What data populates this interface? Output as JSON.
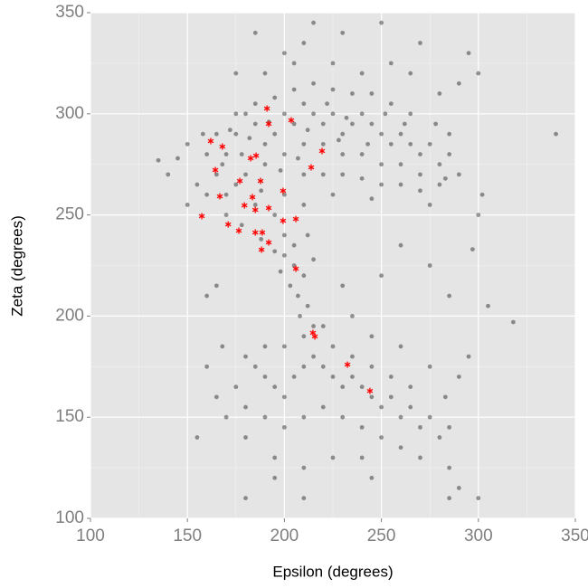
{
  "chart_data": {
    "type": "scatter",
    "x_label": "Epsilon (degrees)",
    "y_label": "Zeta (degrees)",
    "xlim": [
      100,
      350
    ],
    "ylim": [
      100,
      350
    ],
    "xticks": [
      100,
      150,
      200,
      250,
      300,
      350
    ],
    "yticks": [
      100,
      150,
      200,
      250,
      300,
      350
    ],
    "xminor": [
      125,
      175,
      225,
      275,
      325
    ],
    "yminor": [
      125,
      175,
      225,
      275,
      325
    ],
    "grid": true,
    "background": "#e5e5e5",
    "series": [
      {
        "color": "#000000",
        "marker": "dot",
        "opacity": 0.4,
        "x": [
          170,
          175,
          180,
          185,
          190,
          195,
          200,
          205,
          210,
          215,
          220,
          225,
          230,
          235,
          240,
          245,
          250,
          255,
          260,
          265,
          270,
          275,
          280,
          285,
          270,
          260,
          250,
          240,
          230,
          220,
          210,
          200,
          190,
          180,
          175,
          170,
          185,
          195,
          200,
          210,
          220,
          230,
          240,
          250,
          260,
          270,
          280,
          265,
          255,
          245,
          235,
          225,
          215,
          205,
          195,
          185,
          175,
          165,
          160,
          165,
          170,
          178,
          188,
          195,
          200,
          210,
          225,
          245,
          275,
          285,
          290,
          232,
          212,
          198,
          188,
          178,
          168,
          222,
          252,
          262,
          278,
          283,
          243,
          228,
          207,
          192,
          182,
          172,
          158,
          150,
          145,
          155,
          160,
          150,
          190,
          200,
          210,
          215,
          225,
          240,
          255,
          265,
          280,
          290,
          295,
          300,
          175,
          185,
          230,
          270,
          250,
          205,
          200,
          205,
          210,
          203,
          207,
          212,
          208,
          215,
          210,
          205,
          212,
          198,
          215,
          185,
          190,
          195,
          200,
          205,
          210,
          215,
          220,
          225,
          230,
          235,
          240,
          245,
          250,
          255,
          260,
          265,
          270,
          275,
          280,
          285,
          255,
          265,
          245,
          235,
          225,
          200,
          190,
          180,
          175,
          180,
          190,
          200,
          210,
          220,
          230,
          240,
          250,
          260,
          270,
          285,
          290,
          180,
          195,
          210,
          225,
          240,
          170,
          165,
          160,
          168,
          220,
          235,
          245,
          260,
          275,
          283,
          210,
          195,
          135,
          140,
          340,
          318,
          305,
          297,
          300,
          302,
          295,
          290,
          300,
          230,
          250,
          260,
          275,
          285,
          160,
          165,
          155,
          180,
          285,
          245
        ],
        "values": [
          280,
          290,
          300,
          295,
          285,
          290,
          300,
          295,
          305,
          300,
          295,
          300,
          290,
          295,
          300,
          295,
          290,
          285,
          290,
          285,
          280,
          285,
          275,
          280,
          270,
          275,
          275,
          280,
          280,
          285,
          285,
          280,
          275,
          270,
          265,
          260,
          255,
          250,
          260,
          270,
          270,
          270,
          268,
          265,
          265,
          262,
          265,
          300,
          305,
          310,
          310,
          312,
          315,
          312,
          308,
          305,
          300,
          290,
          280,
          270,
          250,
          245,
          238,
          232,
          240,
          255,
          260,
          258,
          255,
          290,
          270,
          298,
          292,
          272,
          262,
          280,
          275,
          305,
          300,
          295,
          295,
          268,
          285,
          287,
          278,
          296,
          288,
          292,
          290,
          285,
          278,
          265,
          260,
          255,
          320,
          330,
          335,
          345,
          325,
          320,
          325,
          320,
          310,
          315,
          330,
          320,
          320,
          340,
          340,
          335,
          345,
          325,
          230,
          225,
          220,
          215,
          210,
          205,
          200,
          195,
          190,
          235,
          240,
          222,
          228,
          175,
          170,
          165,
          160,
          170,
          175,
          180,
          175,
          170,
          165,
          170,
          165,
          160,
          155,
          160,
          150,
          155,
          145,
          150,
          140,
          145,
          170,
          165,
          175,
          180,
          185,
          185,
          185,
          180,
          165,
          155,
          150,
          145,
          150,
          155,
          150,
          145,
          140,
          135,
          130,
          125,
          115,
          140,
          130,
          125,
          130,
          130,
          150,
          160,
          175,
          185,
          195,
          200,
          190,
          185,
          175,
          160,
          110,
          120,
          277,
          270,
          290,
          197,
          205,
          233,
          250,
          260,
          180,
          170,
          110,
          215,
          220,
          235,
          225,
          210,
          210,
          215,
          140,
          110,
          110,
          120
        ]
      },
      {
        "color": "#ff0000",
        "marker": "asterisk",
        "opacity": 1,
        "x": [
          162,
          168,
          164.4,
          166.7,
          157.4,
          171,
          177,
          182.6,
          185.4,
          191,
          191.9,
          203.5,
          219.4,
          213.8,
          187.7,
          183.5,
          179.4,
          185,
          188.6,
          185,
          191.9,
          199.3,
          199.3,
          205.9,
          191.9,
          188.2,
          176.5,
          205.9,
          214.7,
          215.7,
          232.5,
          244.1
        ],
        "values": [
          286.5,
          283.8,
          272.2,
          259.2,
          249.4,
          245.3,
          266.8,
          278,
          279.3,
          302.6,
          295,
          296.8,
          281.6,
          273.5,
          266.8,
          258.8,
          254.7,
          252.5,
          241.3,
          241.3,
          253.4,
          261.9,
          247.1,
          248,
          236.4,
          232.8,
          242.2,
          223.4,
          191.7,
          189.9,
          176,
          163
        ]
      }
    ]
  }
}
